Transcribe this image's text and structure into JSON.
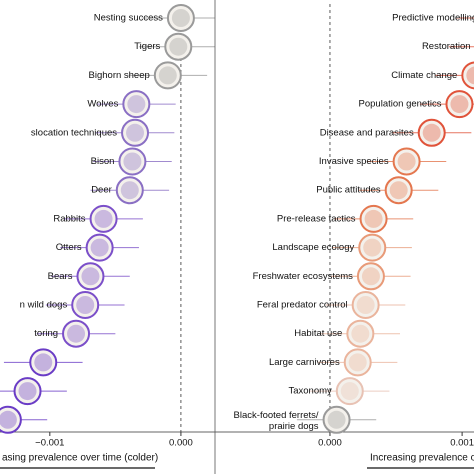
{
  "chart_data": [
    {
      "type": "dot",
      "xlabel": "asing prevalence over time (colder)",
      "categories": [
        "Nesting success",
        "Tigers",
        "Bighorn sheep",
        "Wolves",
        "slocation techniques",
        "Bison",
        "Deer",
        "Rabbits",
        "Otters",
        "Bears",
        "n wild dogs",
        "toring",
        null,
        null,
        null
      ],
      "values": [
        0.0,
        -2e-05,
        -0.0001,
        -0.00034,
        -0.00035,
        -0.00037,
        -0.00039,
        -0.00059,
        -0.00062,
        -0.00069,
        -0.00073,
        -0.0008,
        -0.00105,
        -0.00117,
        -0.00132
      ],
      "errors": [
        0.0003,
        0.0003,
        0.0003,
        0.0003,
        0.0003,
        0.0003,
        0.0003,
        0.0003,
        0.0003,
        0.0003,
        0.0003,
        0.0003,
        0.0003,
        0.0003,
        0.0003
      ],
      "colors": [
        "#9a9a9a",
        "#9a9a9a",
        "#9a9a9a",
        "#8a6fc4",
        "#8a6fc4",
        "#8a6fc4",
        "#8a6fc4",
        "#7b4fc9",
        "#7b4fc9",
        "#7b4fc9",
        "#7b4fc9",
        "#7b4fc9",
        "#6a3cc6",
        "#6a3cc6",
        "#6a3cc6"
      ],
      "xlim": [
        -0.00138,
        0.00026
      ],
      "xticks": [
        {
          "value": -0.001,
          "label": "−0.001"
        },
        {
          "value": 0.0,
          "label": "0.000"
        }
      ]
    },
    {
      "type": "dot",
      "xlabel": "Increasing prevalence over",
      "categories": [
        "Predictive modelling",
        "Restoration",
        "Climate change",
        "Population genetics",
        "Disease and parasites",
        "Invasive species",
        "Public attitudes",
        "Pre-release tactics",
        "Landscape ecology",
        "Freshwater ecosystems",
        "Feral predator control",
        "Habitat use",
        "Large carnivores",
        "Taxonomy",
        "Black-footed ferrets/\nprairie dogs"
      ],
      "values": [
        0.00125,
        0.0012,
        0.0011,
        0.00098,
        0.00077,
        0.00058,
        0.00052,
        0.00033,
        0.00032,
        0.00031,
        0.00027,
        0.00023,
        0.00021,
        0.00015,
        5e-05
      ],
      "errors": [
        0.0003,
        0.0003,
        0.0003,
        0.0003,
        0.0003,
        0.0003,
        0.0003,
        0.0003,
        0.0003,
        0.0003,
        0.0003,
        0.0003,
        0.0003,
        0.0003,
        0.0003
      ],
      "colors": [
        "#e0533a",
        "#e0533a",
        "#e0533a",
        "#e0533a",
        "#e0533a",
        "#e4774f",
        "#e4774f",
        "#e4774f",
        "#e89a78",
        "#e89a78",
        "#eab49c",
        "#eab49c",
        "#eab49c",
        "#e8c2b4",
        "#9a9a9a"
      ],
      "xlim": [
        -0.00087,
        0.00109
      ],
      "xticks": [
        {
          "value": 0.0,
          "label": "0.000"
        },
        {
          "value": 0.001,
          "label": "0.001"
        }
      ]
    }
  ]
}
